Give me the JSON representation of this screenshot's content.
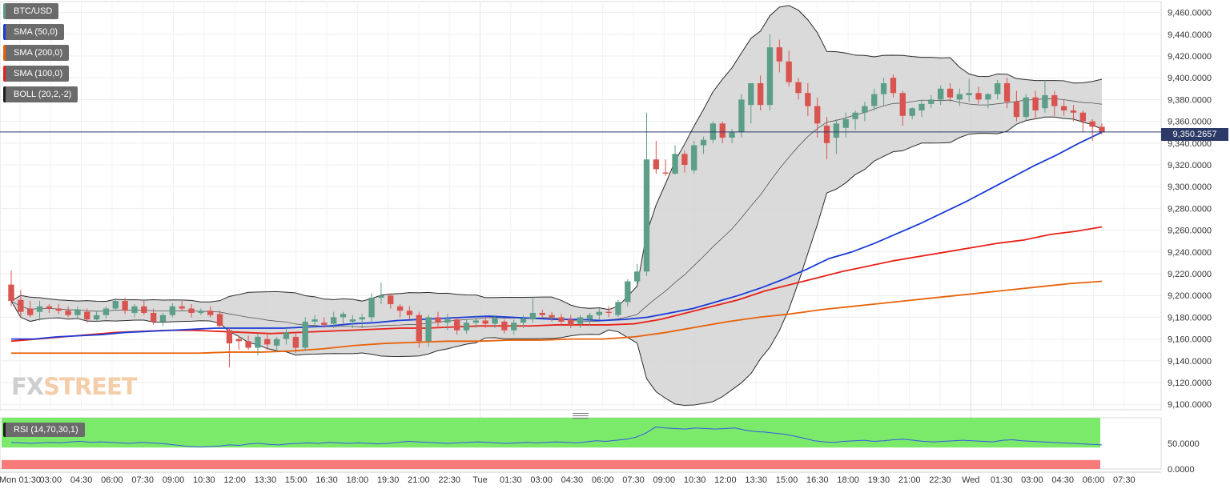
{
  "chart_data": {
    "type": "candlestick",
    "symbol": "BTC/USD",
    "indicators": [
      {
        "label": "SMA (50,0)",
        "color": "#1a3bd8"
      },
      {
        "label": "SMA (200,0)",
        "color": "#e8620a"
      },
      {
        "label": "SMA (100,0)",
        "color": "#e8221a"
      },
      {
        "label": "BOLL (20,2,-2)",
        "color": "#1e1e1e"
      }
    ],
    "current_price": "9,350.2657",
    "ylim": [
      9095000,
      9470000
    ],
    "y_ticks": [
      "9,100.0000",
      "9,120.0000",
      "9,140.0000",
      "9,160.0000",
      "9,180.0000",
      "9,200.0000",
      "9,220.0000",
      "9,240.0000",
      "9,260.0000",
      "9,280.0000",
      "9,300.0000",
      "9,320.0000",
      "9,340.0000",
      "9,360.0000",
      "9,380.0000",
      "9,400.0000",
      "9,420.0000",
      "9,440.0000",
      "9,460.0000"
    ],
    "x_ticks": [
      "Mon 01:30",
      "03:00",
      "04:30",
      "06:00",
      "07:30",
      "09:00",
      "10:30",
      "12:00",
      "13:30",
      "15:00",
      "16:30",
      "18:00",
      "19:30",
      "21:00",
      "22:30",
      "Tue",
      "01:30",
      "03:00",
      "04:30",
      "06:00",
      "07:30",
      "09:00",
      "10:30",
      "12:00",
      "13:30",
      "15:00",
      "16:30",
      "18:00",
      "19:30",
      "21:00",
      "22:30",
      "Wed",
      "01:30",
      "03:00",
      "04:30",
      "06:00",
      "07:30"
    ],
    "candles": [
      [
        9210,
        9223,
        9190,
        9195
      ],
      [
        9196,
        9205,
        9180,
        9185
      ],
      [
        9188,
        9195,
        9180,
        9182
      ],
      [
        9185,
        9195,
        9177,
        9190
      ],
      [
        9190,
        9192,
        9184,
        9188
      ],
      [
        9188,
        9192,
        9183,
        9186
      ],
      [
        9186,
        9190,
        9180,
        9182
      ],
      [
        9182,
        9190,
        9178,
        9187
      ],
      [
        9185,
        9188,
        9175,
        9178
      ],
      [
        9178,
        9186,
        9176,
        9182
      ],
      [
        9182,
        9190,
        9179,
        9188
      ],
      [
        9188,
        9197,
        9186,
        9195
      ],
      [
        9195,
        9198,
        9183,
        9186
      ],
      [
        9184,
        9192,
        9180,
        9190
      ],
      [
        9190,
        9195,
        9182,
        9184
      ],
      [
        9184,
        9188,
        9173,
        9176
      ],
      [
        9176,
        9184,
        9172,
        9182
      ],
      [
        9182,
        9193,
        9180,
        9190
      ],
      [
        9190,
        9195,
        9186,
        9188
      ],
      [
        9188,
        9192,
        9180,
        9184
      ],
      [
        9184,
        9188,
        9182,
        9186
      ],
      [
        9186,
        9190,
        9180,
        9182
      ],
      [
        9183,
        9186,
        9170,
        9172
      ],
      [
        9168,
        9170,
        9134,
        9156
      ],
      [
        9160,
        9163,
        9150,
        9158
      ],
      [
        9158,
        9163,
        9150,
        9152
      ],
      [
        9152,
        9165,
        9145,
        9162
      ],
      [
        9160,
        9166,
        9150,
        9155
      ],
      [
        9154,
        9162,
        9148,
        9160
      ],
      [
        9160,
        9170,
        9155,
        9166
      ],
      [
        9162,
        9165,
        9147,
        9152
      ],
      [
        9152,
        9180,
        9149,
        9176
      ],
      [
        9176,
        9182,
        9170,
        9178
      ],
      [
        9175,
        9180,
        9170,
        9173
      ],
      [
        9174,
        9185,
        9170,
        9180
      ],
      [
        9180,
        9185,
        9174,
        9183
      ],
      [
        9176,
        9182,
        9170,
        9178
      ],
      [
        9178,
        9183,
        9170,
        9180
      ],
      [
        9180,
        9202,
        9176,
        9198
      ],
      [
        9198,
        9212,
        9192,
        9200
      ],
      [
        9200,
        9202,
        9188,
        9192
      ],
      [
        9190,
        9192,
        9180,
        9186
      ],
      [
        9186,
        9190,
        9178,
        9182
      ],
      [
        9182,
        9185,
        9152,
        9158
      ],
      [
        9158,
        9182,
        9153,
        9180
      ],
      [
        9180,
        9185,
        9170,
        9175
      ],
      [
        9175,
        9183,
        9168,
        9178
      ],
      [
        9178,
        9180,
        9164,
        9168
      ],
      [
        9168,
        9178,
        9165,
        9175
      ],
      [
        9175,
        9182,
        9170,
        9177
      ],
      [
        9177,
        9180,
        9170,
        9174
      ],
      [
        9174,
        9182,
        9170,
        9179
      ],
      [
        9176,
        9178,
        9165,
        9168
      ],
      [
        9168,
        9178,
        9164,
        9175
      ],
      [
        9175,
        9182,
        9170,
        9179
      ],
      [
        9178,
        9199,
        9175,
        9184
      ],
      [
        9184,
        9187,
        9180,
        9182
      ],
      [
        9182,
        9185,
        9176,
        9180
      ],
      [
        9180,
        9183,
        9172,
        9176
      ],
      [
        9178,
        9182,
        9170,
        9173
      ],
      [
        9174,
        9182,
        9170,
        9180
      ],
      [
        9178,
        9184,
        9172,
        9182
      ],
      [
        9182,
        9188,
        9178,
        9185
      ],
      [
        9185,
        9190,
        9180,
        9184
      ],
      [
        9182,
        9196,
        9180,
        9194
      ],
      [
        9194,
        9215,
        9190,
        9213
      ],
      [
        9213,
        9229,
        9210,
        9222
      ],
      [
        9222,
        9368,
        9218,
        9325
      ],
      [
        9325,
        9342,
        9312,
        9316
      ],
      [
        9313,
        9325,
        9310,
        9312
      ],
      [
        9312,
        9338,
        9311,
        9330
      ],
      [
        9330,
        9333,
        9313,
        9320
      ],
      [
        9315,
        9342,
        9312,
        9338
      ],
      [
        9338,
        9346,
        9330,
        9343
      ],
      [
        9343,
        9360,
        9340,
        9358
      ],
      [
        9358,
        9360,
        9340,
        9345
      ],
      [
        9345,
        9353,
        9340,
        9350
      ],
      [
        9350,
        9385,
        9345,
        9380
      ],
      [
        9375,
        9395,
        9358,
        9395
      ],
      [
        9395,
        9402,
        9370,
        9375
      ],
      [
        9375,
        9440,
        9370,
        9428
      ],
      [
        9428,
        9435,
        9405,
        9415
      ],
      [
        9415,
        9425,
        9392,
        9396
      ],
      [
        9396,
        9400,
        9380,
        9386
      ],
      [
        9386,
        9395,
        9365,
        9374
      ],
      [
        9374,
        9382,
        9345,
        9358
      ],
      [
        9356,
        9364,
        9325,
        9340
      ],
      [
        9345,
        9362,
        9330,
        9358
      ],
      [
        9354,
        9368,
        9345,
        9362
      ],
      [
        9362,
        9370,
        9352,
        9368
      ],
      [
        9368,
        9378,
        9360,
        9374
      ],
      [
        9374,
        9390,
        9370,
        9385
      ],
      [
        9385,
        9400,
        9374,
        9395
      ],
      [
        9400,
        9403,
        9382,
        9386
      ],
      [
        9386,
        9388,
        9356,
        9365
      ],
      [
        9365,
        9373,
        9362,
        9372
      ],
      [
        9370,
        9380,
        9364,
        9376
      ],
      [
        9376,
        9384,
        9372,
        9380
      ],
      [
        9380,
        9393,
        9375,
        9390
      ],
      [
        9390,
        9395,
        9378,
        9382
      ],
      [
        9380,
        9390,
        9374,
        9385
      ],
      [
        9384,
        9399,
        9378,
        9386
      ],
      [
        9386,
        9392,
        9376,
        9380
      ],
      [
        9380,
        9386,
        9372,
        9385
      ],
      [
        9385,
        9398,
        9380,
        9395
      ],
      [
        9395,
        9400,
        9372,
        9378
      ],
      [
        9378,
        9388,
        9360,
        9364
      ],
      [
        9364,
        9385,
        9360,
        9382
      ],
      [
        9382,
        9388,
        9362,
        9370
      ],
      [
        9372,
        9398,
        9368,
        9384
      ],
      [
        9384,
        9388,
        9365,
        9374
      ],
      [
        9374,
        9380,
        9365,
        9370
      ],
      [
        9370,
        9375,
        9360,
        9368
      ],
      [
        9368,
        9370,
        9350,
        9360
      ],
      [
        9360,
        9362,
        9342,
        9355
      ],
      [
        9355,
        9358,
        9348,
        9350
      ]
    ],
    "sma50": [
      9160,
      9160,
      9162,
      9163,
      9164,
      9166,
      9167,
      9168,
      9169,
      9170,
      9170,
      9170,
      9170,
      9171,
      9172,
      9174,
      9175,
      9177,
      9178,
      9179,
      9180,
      9181,
      9180,
      9179,
      9178,
      9178,
      9177,
      9178,
      9180,
      9184,
      9188,
      9194,
      9200,
      9207,
      9215,
      9224,
      9234,
      9240,
      9248,
      9257,
      9266,
      9276,
      9286,
      9297,
      9308,
      9319,
      9329,
      9340,
      9350
    ],
    "sma100": [
      9158,
      9160,
      9162,
      9164,
      9166,
      9167,
      9168,
      9168,
      9167,
      9166,
      9165,
      9166,
      9167,
      9168,
      9169,
      9170,
      9170,
      9171,
      9172,
      9172,
      9172,
      9173,
      9173,
      9173,
      9174,
      9178,
      9184,
      9190,
      9196,
      9204,
      9210,
      9216,
      9222,
      9227,
      9232,
      9236,
      9240,
      9244,
      9248,
      9251,
      9256,
      9259,
      9263
    ],
    "sma200": [
      9147,
      9147,
      9147,
      9147,
      9147,
      9147,
      9147,
      9148,
      9148,
      9149,
      9151,
      9154,
      9156,
      9157,
      9158,
      9158,
      9159,
      9159,
      9160,
      9160,
      9162,
      9166,
      9171,
      9176,
      9180,
      9183,
      9187,
      9190,
      9193,
      9196,
      9199,
      9202,
      9205,
      9208,
      9211,
      9213
    ]
  },
  "rsi": {
    "label": "RSI (14,70,30,1)",
    "upper_band": 70,
    "lower_band": 30,
    "ylim": [
      0,
      100
    ],
    "y_ticks": [
      "50.0000",
      "0.0000"
    ],
    "values": [
      52,
      51,
      50,
      51,
      52,
      51,
      53,
      54,
      52,
      53,
      52,
      51,
      50,
      52,
      51,
      50,
      48,
      46,
      44,
      43,
      44,
      45,
      47,
      46,
      49,
      50,
      48,
      47,
      49,
      50,
      51,
      50,
      52,
      51,
      50,
      51,
      50,
      49,
      50,
      52,
      54,
      53,
      52,
      51,
      50,
      51,
      52,
      53,
      52,
      51,
      50,
      51,
      52,
      51,
      52,
      53,
      52,
      51,
      53,
      55,
      54,
      56,
      58,
      62,
      70,
      82,
      80,
      79,
      78,
      80,
      79,
      78,
      79,
      80,
      76,
      73,
      72,
      70,
      68,
      64,
      60,
      55,
      53,
      52,
      54,
      55,
      56,
      54,
      55,
      57,
      58,
      56,
      54,
      53,
      54,
      55,
      56,
      55,
      54,
      53,
      56,
      57,
      55,
      54,
      53,
      52,
      51,
      50,
      49,
      48,
      47
    ]
  },
  "watermark": {
    "prefix": "FX",
    "suffix": "STREET"
  },
  "colors": {
    "up": "#5d9e88",
    "down": "#d9534f",
    "boll_fill": "#d4d4d4",
    "rsi_up": "#7be96a",
    "rsi_down": "#f87b7b",
    "rsi_line": "#3557e8"
  }
}
